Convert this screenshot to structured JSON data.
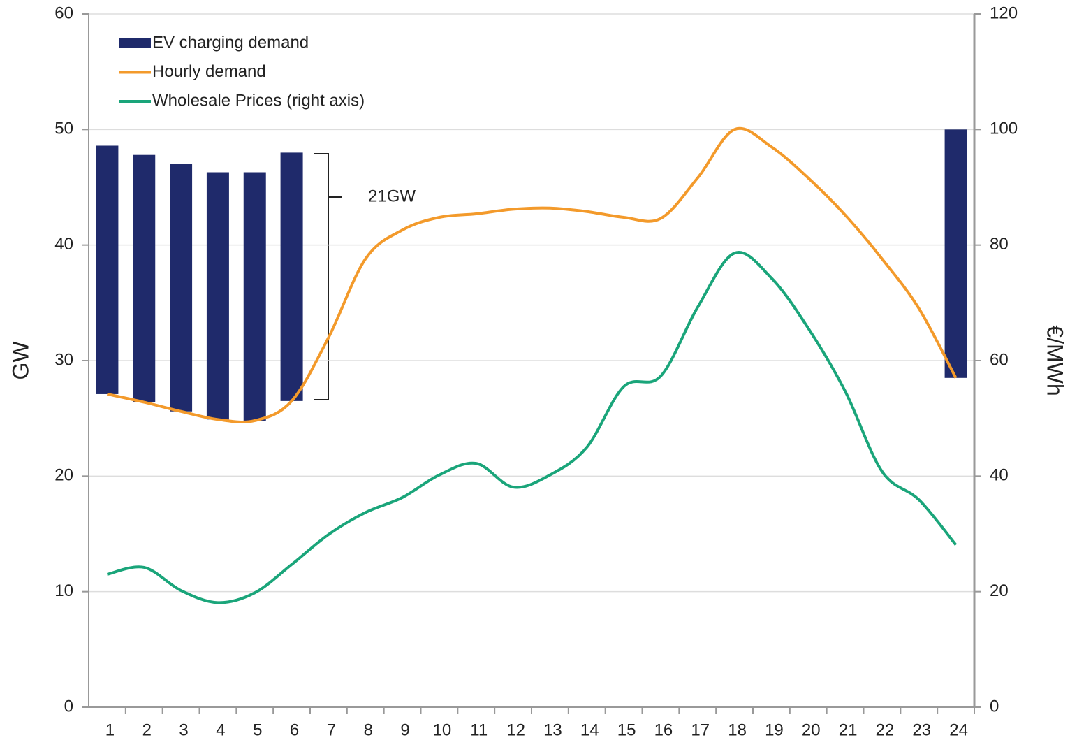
{
  "chart_data": {
    "type": "bar",
    "stacked": true,
    "y_label": "GW",
    "y2_label": "€/MWh",
    "annotation": "21GW",
    "categories": [
      "1",
      "2",
      "3",
      "4",
      "5",
      "6",
      "7",
      "8",
      "9",
      "10",
      "11",
      "12",
      "13",
      "14",
      "15",
      "16",
      "17",
      "18",
      "19",
      "20",
      "21",
      "22",
      "23",
      "24"
    ],
    "series": [
      {
        "name": "EV charging demand",
        "type": "bar",
        "color": "#1f2a6b",
        "values": [
          21.5,
          21.4,
          21.4,
          21.4,
          21.5,
          21.5,
          null,
          null,
          null,
          null,
          null,
          null,
          null,
          null,
          null,
          null,
          null,
          null,
          null,
          null,
          null,
          null,
          null,
          21.5
        ]
      },
      {
        "name": "Hourly demand",
        "type": "line",
        "color": "#f39a2b",
        "values": [
          27.1,
          26.4,
          25.6,
          24.9,
          24.8,
          26.5,
          32.0,
          38.8,
          41.3,
          42.4,
          42.7,
          43.1,
          43.2,
          42.9,
          42.4,
          42.3,
          45.8,
          50.0,
          48.5,
          45.8,
          42.6,
          38.8,
          34.5,
          28.5
        ]
      },
      {
        "name": "Wholesale Prices (right axis)",
        "type": "line",
        "axis": "y2",
        "color": "#1aa57a",
        "values": [
          23.0,
          24.2,
          20.2,
          18.1,
          19.8,
          24.7,
          29.9,
          33.7,
          36.3,
          40.2,
          42.2,
          38.1,
          40.2,
          45.0,
          55.5,
          57.3,
          69.2,
          78.6,
          74.3,
          65.6,
          54.7,
          40.8,
          35.9,
          28.1
        ]
      }
    ],
    "ylim": [
      0,
      60
    ],
    "yticks": [
      0,
      10,
      20,
      30,
      40,
      50,
      60
    ],
    "y2lim": [
      0,
      120
    ],
    "y2ticks": [
      0,
      20,
      40,
      60,
      80,
      100,
      120
    ],
    "grid": true,
    "legend": "top-left"
  }
}
